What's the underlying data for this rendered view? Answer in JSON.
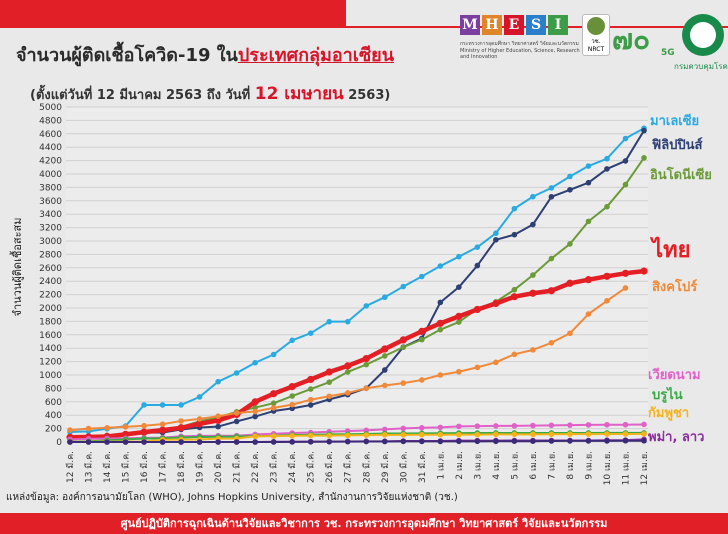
{
  "header": {
    "title_part1": "จำนวนผู้ติดเชื้อโควิด-19 ใน",
    "title_part2": "ประเทศกลุ่มอาเซียน",
    "subtitle_part1": "(ตั้งแต่วันที่ 12 มีนาคม 2563 ถึง วันที่ ",
    "subtitle_part2": "12 เมษายน",
    "subtitle_part3": " 2563)"
  },
  "logos": {
    "mhesi_letters": [
      "M",
      "H",
      "E",
      "S",
      "I"
    ],
    "mhesi_sub": "กระทรวงการอุดมศึกษา วิทยาศาสตร์ วิจัยและนวัตกรรม Ministry of Higher Education, Science, Research and Innovation",
    "nrct": "วช. NRCT",
    "seventy": "๗๐",
    "five_g": "5G",
    "moph": "กรมควบคุมโรค",
    "colors": [
      "#7b3fa0",
      "#e0862a",
      "#d7152a",
      "#2a7fc8",
      "#3c9c48"
    ]
  },
  "chart_data": {
    "type": "line",
    "ylabel": "จำนวนผู้ติดเชื้อสะสม",
    "ylim": [
      0,
      5000
    ],
    "yticks": [
      0,
      200,
      400,
      600,
      800,
      1000,
      1200,
      1400,
      1600,
      1800,
      2000,
      2200,
      2400,
      2600,
      2800,
      3000,
      3200,
      3400,
      3600,
      3800,
      4000,
      4200,
      4400,
      4600,
      4800,
      5000
    ],
    "grid": true,
    "categories": [
      "12 มี.ค.",
      "13 มี.ค.",
      "14 มี.ค.",
      "15 มี.ค.",
      "16 มี.ค.",
      "17 มี.ค.",
      "18 มี.ค.",
      "19 มี.ค.",
      "20 มี.ค.",
      "21 มี.ค.",
      "22 มี.ค.",
      "23 มี.ค.",
      "24 มี.ค.",
      "25 มี.ค.",
      "26 มี.ค.",
      "27 มี.ค.",
      "28 มี.ค.",
      "29 มี.ค.",
      "30 มี.ค.",
      "31 มี.ค.",
      "1 เม.ย.",
      "2 เม.ย.",
      "3 เม.ย.",
      "4 เม.ย.",
      "5 เม.ย.",
      "6 เม.ย.",
      "7 เม.ย.",
      "8 เม.ย.",
      "9 เม.ย.",
      "10 เม.ย.",
      "11 เม.ย.",
      "12 เม.ย."
    ],
    "series": [
      {
        "name": "มาเลเซีย",
        "color": "#29abe2",
        "width": 2,
        "values": [
          149,
          158,
          197,
          238,
          553,
          553,
          553,
          673,
          900,
          1030,
          1183,
          1306,
          1518,
          1624,
          1796,
          1796,
          2031,
          2161,
          2320,
          2470,
          2626,
          2766,
          2908,
          3116,
          3483,
          3662,
          3793,
          3963,
          4119,
          4228,
          4530,
          4683
        ]
      },
      {
        "name": "ฟิลิปปินส์",
        "color": "#2d3f73",
        "width": 2,
        "values": [
          52,
          64,
          98,
          111,
          140,
          142,
          187,
          217,
          230,
          307,
          380,
          462,
          502,
          552,
          636,
          707,
          803,
          1075,
          1418,
          1546,
          2084,
          2311,
          2633,
          3018,
          3094,
          3246,
          3660,
          3764,
          3870,
          4076,
          4195,
          4648
        ]
      },
      {
        "name": "อินโดนีเซีย",
        "color": "#6b9a38",
        "width": 2,
        "values": [
          34,
          69,
          96,
          117,
          134,
          172,
          227,
          309,
          369,
          450,
          514,
          579,
          686,
          790,
          893,
          1046,
          1155,
          1285,
          1414,
          1528,
          1677,
          1790,
          1986,
          2092,
          2273,
          2491,
          2738,
          2956,
          3293,
          3512,
          3842,
          4241
        ]
      },
      {
        "name": "ไทย",
        "color": "#e31e24",
        "width": 4.5,
        "values": [
          70,
          75,
          82,
          114,
          147,
          177,
          212,
          272,
          322,
          411,
          599,
          721,
          827,
          934,
          1045,
          1136,
          1245,
          1388,
          1524,
          1651,
          1771,
          1875,
          1978,
          2067,
          2169,
          2220,
          2258,
          2369,
          2423,
          2473,
          2518,
          2551
        ]
      },
      {
        "name": "สิงคโปร์",
        "color": "#f0893a",
        "width": 2,
        "values": [
          178,
          200,
          212,
          226,
          243,
          266,
          313,
          345,
          385,
          432,
          455,
          509,
          558,
          631,
          683,
          732,
          802,
          844,
          879,
          926,
          1000,
          1049,
          1114,
          1189,
          1309,
          1375,
          1481,
          1623,
          1910,
          2108,
          2299,
          null
        ]
      },
      {
        "name": "เวียดนาม",
        "color": "#e062c8",
        "width": 2,
        "values": [
          39,
          47,
          53,
          56,
          61,
          66,
          85,
          91,
          94,
          94,
          113,
          123,
          134,
          141,
          153,
          163,
          174,
          188,
          203,
          212,
          218,
          233,
          237,
          240,
          241,
          245,
          249,
          251,
          255,
          257,
          258,
          262
        ]
      },
      {
        "name": "บรูไน",
        "color": "#3aaa48",
        "width": 2,
        "values": [
          6,
          11,
          25,
          40,
          50,
          56,
          68,
          75,
          78,
          83,
          88,
          91,
          104,
          109,
          114,
          115,
          120,
          126,
          127,
          129,
          131,
          133,
          134,
          135,
          135,
          135,
          135,
          135,
          135,
          136,
          136,
          136
        ]
      },
      {
        "name": "กัมพูชา",
        "color": "#f5b31b",
        "width": 2,
        "values": [
          3,
          3,
          5,
          7,
          7,
          33,
          35,
          37,
          51,
          53,
          84,
          87,
          91,
          96,
          96,
          99,
          103,
          107,
          107,
          109,
          109,
          110,
          110,
          114,
          114,
          114,
          115,
          117,
          117,
          119,
          120,
          120
        ]
      },
      {
        "name": "พม่า",
        "color": "#8a2e9e",
        "width": 2,
        "values": [
          0,
          0,
          0,
          0,
          0,
          0,
          0,
          0,
          0,
          0,
          0,
          3,
          3,
          5,
          5,
          8,
          10,
          10,
          14,
          15,
          15,
          20,
          20,
          21,
          22,
          22,
          22,
          22,
          22,
          27,
          28,
          39
        ]
      },
      {
        "name": "ลาว",
        "color": "#3b2a78",
        "width": 2,
        "values": [
          0,
          0,
          0,
          0,
          0,
          0,
          0,
          0,
          0,
          0,
          0,
          0,
          2,
          3,
          6,
          6,
          8,
          8,
          9,
          9,
          9,
          10,
          10,
          11,
          12,
          12,
          15,
          16,
          16,
          16,
          19,
          19
        ]
      }
    ],
    "labels": [
      {
        "text": "มาเลเซีย",
        "color": "#29abe2",
        "size": 13
      },
      {
        "text": "ฟิลิปปินส์",
        "color": "#2d3f73",
        "size": 13
      },
      {
        "text": "อินโดนีเซีย",
        "color": "#6b9a38",
        "size": 13
      },
      {
        "text": "ไทย",
        "color": "#e31e24",
        "size": 22
      },
      {
        "text": "สิงคโปร์",
        "color": "#f0893a",
        "size": 13
      },
      {
        "text": "เวียดนาม",
        "color": "#e062c8",
        "size": 13
      },
      {
        "text": "บรูไน",
        "color": "#3aaa48",
        "size": 13
      },
      {
        "text": "กัมพูชา",
        "color": "#f5b31b",
        "size": 13
      },
      {
        "text": "พม่า, ลาว",
        "color": "#8a2e9e",
        "size": 13
      }
    ]
  },
  "source": "แหล่งข้อมูล: องค์การอนามัยโลก (WHO), Johns Hopkins University, สำนักงานการวิจัยแห่งชาติ (วช.)",
  "footer": "ศูนย์ปฏิบัติการฉุกเฉินด้านวิจัยและวิชาการ   วช.   กระทรวงการอุดมศึกษา วิทยาศาสตร์ วิจัยและนวัตกรรม"
}
